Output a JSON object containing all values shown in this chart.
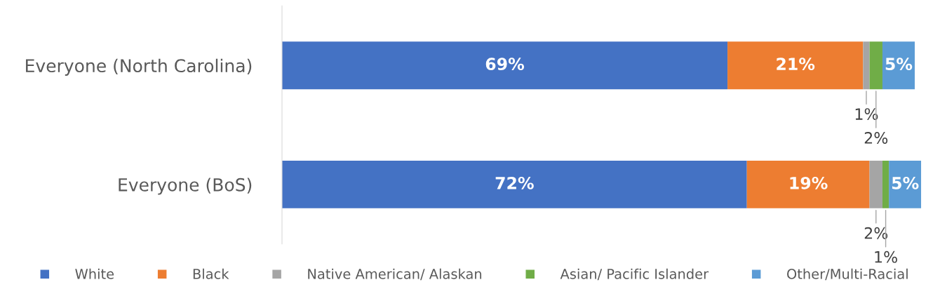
{
  "chart_data": {
    "type": "bar",
    "orientation": "horizontal",
    "stacked": true,
    "categories": [
      "Everyone (North Carolina)",
      "Everyone (BoS)"
    ],
    "series": [
      {
        "name": "White",
        "color": "#4472c4",
        "values": [
          69,
          72
        ],
        "value_labels": [
          "69%",
          "72%"
        ]
      },
      {
        "name": "Black",
        "color": "#ed7d31",
        "values": [
          21,
          19
        ],
        "value_labels": [
          "21%",
          "19%"
        ]
      },
      {
        "name": "Native American/ Alaskan",
        "color": "#a5a5a5",
        "values": [
          1,
          2
        ],
        "value_labels": [
          "1%",
          "2%"
        ]
      },
      {
        "name": "Asian/ Pacific Islander",
        "color": "#70ad47",
        "values": [
          2,
          1
        ],
        "value_labels": [
          "2%",
          "1%"
        ]
      },
      {
        "name": "Other/Multi-Racial",
        "color": "#5b9bd5",
        "values": [
          5,
          5
        ],
        "value_labels": [
          "5%",
          "5%"
        ]
      }
    ],
    "tick_labels": "y",
    "legend": "bottom",
    "grid": false
  }
}
